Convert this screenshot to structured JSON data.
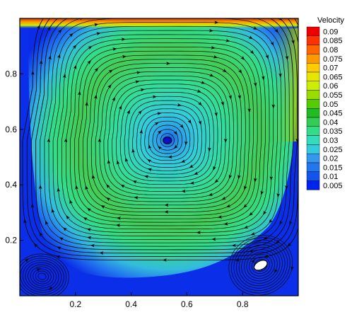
{
  "chart_data": {
    "type": "contour",
    "title": "",
    "xlabel": "",
    "ylabel": "",
    "xlim": [
      0.0,
      1.0
    ],
    "ylim": [
      0.0,
      1.0
    ],
    "x_ticks": [
      0.2,
      0.4,
      0.6,
      0.8
    ],
    "y_ticks": [
      0.2,
      0.4,
      0.6,
      0.8
    ],
    "x_tick_labels": [
      "0.2",
      "0.4",
      "0.6",
      "0.8"
    ],
    "y_tick_labels": [
      "0.2",
      "0.4",
      "0.6",
      "0.8"
    ],
    "grid": false,
    "legend": {
      "title": "Velocity",
      "placement": "right",
      "levels": [
        0.09,
        0.085,
        0.08,
        0.075,
        0.07,
        0.065,
        0.06,
        0.055,
        0.05,
        0.045,
        0.04,
        0.035,
        0.03,
        0.025,
        0.02,
        0.015,
        0.01,
        0.005
      ],
      "level_labels": [
        "0.09",
        "0.085",
        "0.08",
        "0.075",
        "0.07",
        "0.065",
        "0.06",
        "0.055",
        "0.05",
        "0.045",
        "0.04",
        "0.035",
        "0.03",
        "0.025",
        "0.02",
        "0.015",
        "0.01",
        "0.005"
      ],
      "colors": [
        "#ee0000",
        "#ff3300",
        "#ff6600",
        "#ff9900",
        "#ffcc00",
        "#e6e600",
        "#ccee00",
        "#99dd00",
        "#55cc00",
        "#22bb22",
        "#33cc55",
        "#33dd88",
        "#33ddbb",
        "#33ccdd",
        "#3399ee",
        "#2277ee",
        "#1155ee",
        "#0022ee"
      ]
    },
    "vortices": [
      {
        "name": "primary",
        "x": 0.53,
        "y": 0.56
      },
      {
        "name": "bottom-right",
        "x": 0.865,
        "y": 0.11
      },
      {
        "name": "bottom-left",
        "x": 0.08,
        "y": 0.07
      }
    ],
    "streamlines": "closed clockwise streamlines around the primary vortex with direction arrows"
  }
}
